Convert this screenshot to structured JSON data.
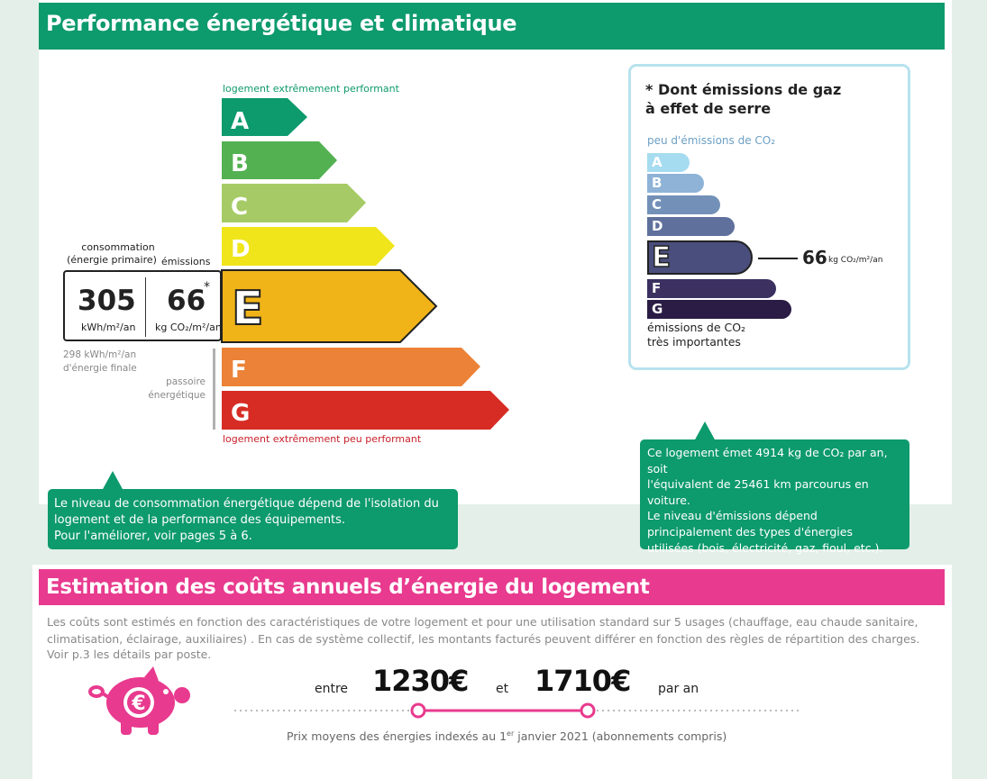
{
  "dpe": {
    "title": "Performance énergétique et climatique",
    "top_label": "logement extrêmement performant",
    "bottom_label": "logement extrêmement peu performant",
    "classes": [
      "A",
      "B",
      "C",
      "D",
      "E",
      "F",
      "G"
    ],
    "current_class": "E",
    "conso_label_1": "consommation",
    "conso_label_2": "(énergie primaire)",
    "emissions_label": "émissions",
    "conso_value": "305",
    "conso_unit": "kWh/m²/an",
    "emissions_value": "66",
    "emissions_star": "*",
    "emissions_unit": "kg CO₂/m²/an",
    "final_energy_1": "298 kWh/m²/an",
    "final_energy_2": "d'énergie finale",
    "passoire_1": "passoire",
    "passoire_2": "énergétique",
    "colors": {
      "A": "#0d9a6c",
      "B": "#53b151",
      "C": "#a6cb66",
      "D": "#f0e51b",
      "E": "#f0b418",
      "F": "#eb8237",
      "G": "#d62c24"
    }
  },
  "callout_left": {
    "line1": "Le niveau de consommation énergétique dépend de l'isolation du",
    "line2": "logement et de la performance des équipements.",
    "line3": "Pour l'améliorer, voir pages 5 à 6."
  },
  "ges": {
    "title_1": "* Dont émissions de gaz",
    "title_2": "à effet de serre",
    "top_label": "peu d'émissions de CO₂",
    "bottom_label_1": "émissions de CO₂",
    "bottom_label_2": "très importantes",
    "classes": [
      "A",
      "B",
      "C",
      "D",
      "E",
      "F",
      "G"
    ],
    "current_class": "E",
    "value": "66",
    "unit": "kg CO₂/m²/an",
    "colors": {
      "A": "#a6dcf0",
      "B": "#8eb3d6",
      "C": "#7391b8",
      "D": "#5f709c",
      "E": "#4a4e7d",
      "F": "#3b3060",
      "G": "#2a1c45"
    }
  },
  "callout_right": {
    "line1": "Ce logement émet 4914 kg de CO₂ par an, soit",
    "line2": "l'équivalent de 25461 km parcourus en",
    "line3": "voiture.",
    "line4": "Le niveau d'émissions dépend",
    "line5": "principalement des types d'énergies",
    "line6": "utilisées (bois, électricité, gaz, fioul, etc.)."
  },
  "cost": {
    "title": "Estimation des coûts annuels d’énergie du logement",
    "desc_1": "Les coûts sont estimés en fonction des caractéristiques de votre logement et pour une utilisation standard sur 5 usages (chauffage, eau chaude sanitaire,",
    "desc_2": "climatisation, éclairage, auxiliaires) . En cas de système collectif, les montants facturés peuvent différer en fonction des règles de répartition des charges.",
    "desc_3": "Voir p.3 les détails par poste.",
    "entre": "entre",
    "min": "1230€",
    "et": "et",
    "max": "1710€",
    "par_an": "par an",
    "prix_prefix": "Prix moyens des énergies indexés au 1",
    "prix_sup": "er",
    "prix_suffix": " janvier 2021 (abonnements compris)",
    "euro_symbol": "€",
    "pink": "#e83a8e"
  }
}
